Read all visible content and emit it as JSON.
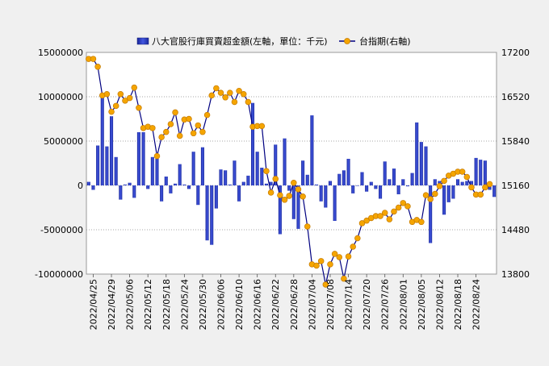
{
  "chart_data": {
    "type": "bar+line",
    "title": "",
    "legend": {
      "placement": "top-center",
      "entries": [
        {
          "name": "八大官股行庫買賣超金額(左軸，單位：千元)",
          "kind": "bar",
          "color": "#2a3dbb"
        },
        {
          "name": "台指期(右軸)",
          "kind": "line-marker",
          "color": "#000080",
          "marker_color": "#f5a500"
        }
      ]
    },
    "left_axis": {
      "ylim": [
        -10000000,
        15000000
      ],
      "ticks": [
        -10000000,
        -5000000,
        0,
        5000000,
        10000000,
        15000000
      ],
      "tick_labels": [
        "-10000000",
        "-5000000",
        "0",
        "5000000",
        "10000000",
        "15000000"
      ]
    },
    "right_axis": {
      "ylim": [
        13800,
        17200
      ],
      "ticks": [
        13800,
        14480,
        15160,
        15840,
        16520,
        17200
      ],
      "tick_labels": [
        "13800",
        "14480",
        "15160",
        "15840",
        "16520",
        "17200"
      ]
    },
    "grid": "horizontal dotted",
    "x_tick_labels": [
      "2022/04/25",
      "2022/04/29",
      "2022/05/06",
      "2022/05/12",
      "2022/05/18",
      "2022/05/24",
      "2022/05/30",
      "2022/06/06",
      "2022/06/10",
      "2022/06/16",
      "2022/06/22",
      "2022/06/28",
      "2022/07/04",
      "2022/07/08",
      "2022/07/14",
      "2022/07/20",
      "2022/07/26",
      "2022/08/01",
      "2022/08/05",
      "2022/08/12",
      "2022/08/18",
      "2022/08/24"
    ],
    "x_tick_every": 4,
    "series": [
      {
        "name": "八大官股行庫買賣超金額(左軸，單位：千元)",
        "axis": "left",
        "type": "bar",
        "values": [
          400000,
          -500000,
          4500000,
          10200000,
          4400000,
          7800000,
          3200000,
          -1600000,
          100000,
          300000,
          -1400000,
          6000000,
          6000000,
          -400000,
          3200000,
          3000000,
          -1800000,
          1000000,
          -900000,
          200000,
          2400000,
          100000,
          -400000,
          3800000,
          -2200000,
          4300000,
          -6200000,
          -6700000,
          -2600000,
          1800000,
          1700000,
          100000,
          2800000,
          -1800000,
          400000,
          1100000,
          9300000,
          3800000,
          2000000,
          200000,
          400000,
          4600000,
          -5500000,
          5300000,
          -600000,
          -3800000,
          -4900000,
          2800000,
          1200000,
          7900000,
          100000,
          -1800000,
          -2500000,
          500000,
          -4000000,
          1300000,
          1700000,
          3000000,
          -900000,
          0,
          1500000,
          -700000,
          400000,
          -400000,
          -1500000,
          2700000,
          700000,
          1900000,
          -1000000,
          700000,
          -100000,
          1400000,
          7100000,
          4900000,
          4400000,
          -6500000,
          700000,
          500000,
          -3300000,
          -1900000,
          -1500000,
          700000,
          400000,
          500000,
          500000,
          3100000,
          2900000,
          2800000,
          -500000,
          -1300000
        ]
      },
      {
        "name": "台指期(右軸)",
        "axis": "right",
        "type": "line",
        "values": [
          17100,
          17100,
          16980,
          16540,
          16560,
          16290,
          16380,
          16560,
          16460,
          16500,
          16660,
          16350,
          16040,
          16060,
          16040,
          15610,
          15900,
          15980,
          16100,
          16280,
          15920,
          16170,
          16180,
          15960,
          16080,
          15980,
          16240,
          16540,
          16650,
          16580,
          16510,
          16580,
          16440,
          16610,
          16560,
          16440,
          16060,
          16070,
          16070,
          15380,
          15050,
          15260,
          15010,
          14940,
          15000,
          15200,
          15100,
          14990,
          14530,
          13950,
          13930,
          14000,
          13640,
          13950,
          14110,
          14060,
          13730,
          14070,
          14220,
          14350,
          14580,
          14620,
          14660,
          14690,
          14690,
          14740,
          14640,
          14760,
          14820,
          14890,
          14840,
          14600,
          14630,
          14600,
          15010,
          14950,
          15030,
          15150,
          15230,
          15310,
          15340,
          15370,
          15370,
          15290,
          15130,
          15020,
          15020,
          15130,
          15180
        ]
      }
    ]
  }
}
